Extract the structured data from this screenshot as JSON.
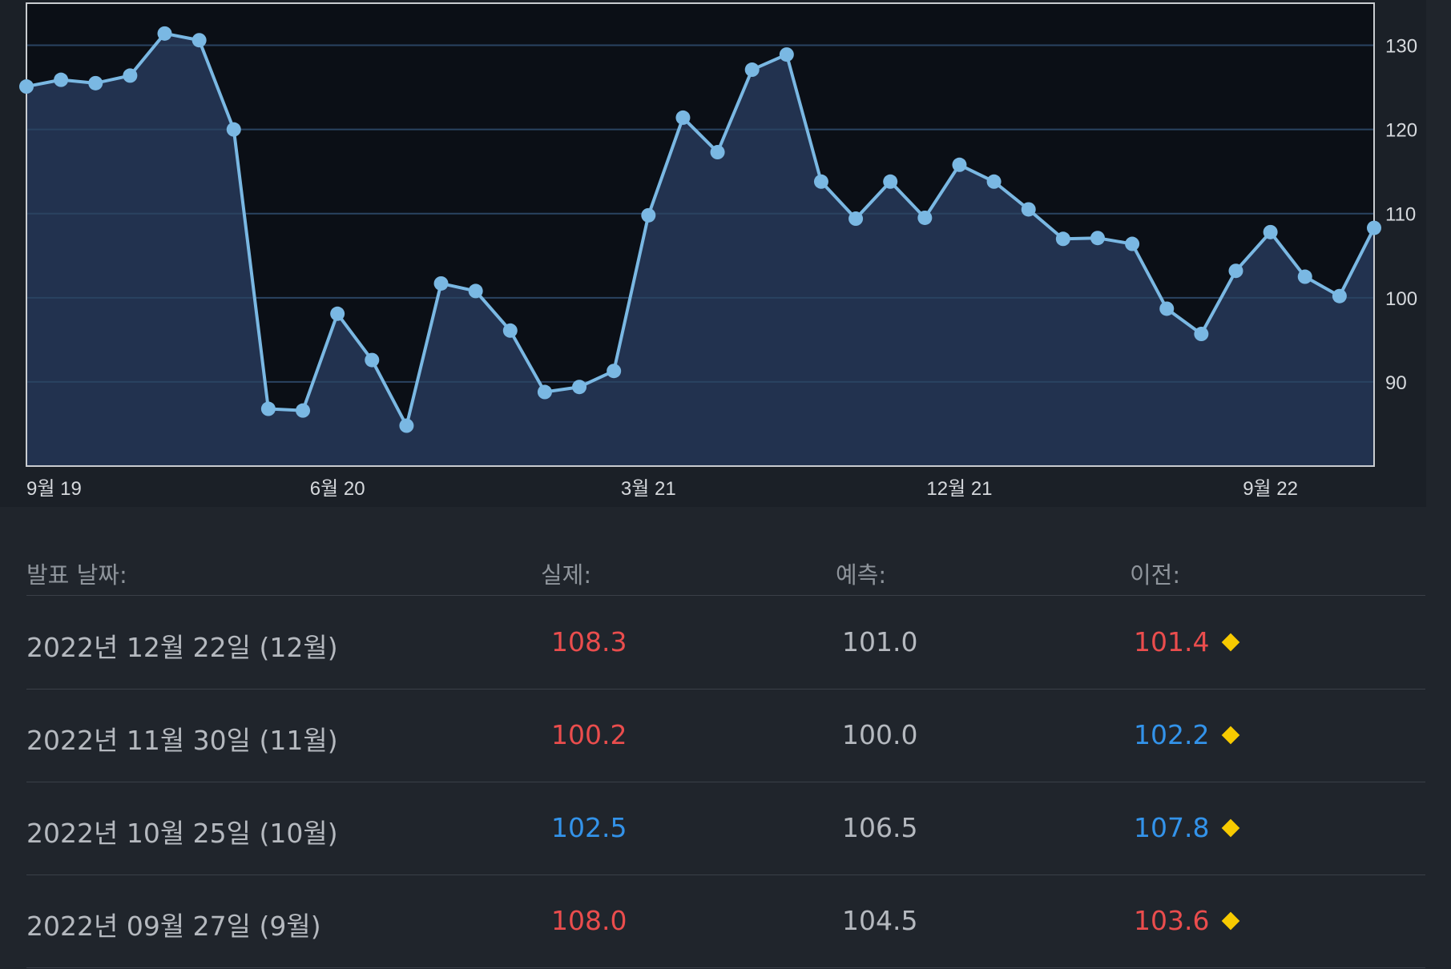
{
  "chart_data": {
    "type": "area",
    "x_tick_labels": [
      "9월 19",
      "6월 20",
      "3월 21",
      "12월 21",
      "9월 22"
    ],
    "y_tick_labels": [
      "90",
      "100",
      "110",
      "120",
      "130"
    ],
    "ylim": [
      80,
      135
    ],
    "grid": true,
    "series": [
      {
        "values": [
          125.1,
          125.9,
          125.5,
          126.4,
          131.4,
          130.6,
          120.0,
          86.8,
          86.6,
          98.1,
          92.6,
          84.8,
          101.7,
          100.8,
          96.1,
          88.8,
          89.4,
          91.3,
          109.8,
          121.4,
          117.3,
          127.1,
          128.9,
          113.8,
          109.4,
          113.8,
          109.5,
          115.8,
          113.8,
          110.5,
          107.0,
          107.1,
          106.4,
          98.7,
          95.7,
          103.2,
          107.8,
          102.5,
          100.2,
          108.3
        ],
        "color": "#7ab8e3"
      }
    ]
  },
  "table": {
    "headers": {
      "date": "발표 날짜:",
      "actual": "실제:",
      "forecast": "예측:",
      "previous": "이전:"
    },
    "rows": [
      {
        "date": "2022년 12월 22일 (12월)",
        "actual": "108.3",
        "actual_color": "red",
        "forecast": "101.0",
        "previous": "101.4",
        "previous_color": "red"
      },
      {
        "date": "2022년 11월 30일 (11월)",
        "actual": "100.2",
        "actual_color": "red",
        "forecast": "100.0",
        "previous": "102.2",
        "previous_color": "blue"
      },
      {
        "date": "2022년 10월 25일 (10월)",
        "actual": "102.5",
        "actual_color": "blue",
        "forecast": "106.5",
        "previous": "107.8",
        "previous_color": "blue"
      },
      {
        "date": "2022년 09월 27일 (9월)",
        "actual": "108.0",
        "actual_color": "red",
        "forecast": "104.5",
        "previous": "103.6",
        "previous_color": "red"
      }
    ],
    "row_marker_icon": "diamond-icon",
    "colors": {
      "red": "#ea4d4d",
      "blue": "#3393ea",
      "marker": "#f7ca00"
    }
  }
}
